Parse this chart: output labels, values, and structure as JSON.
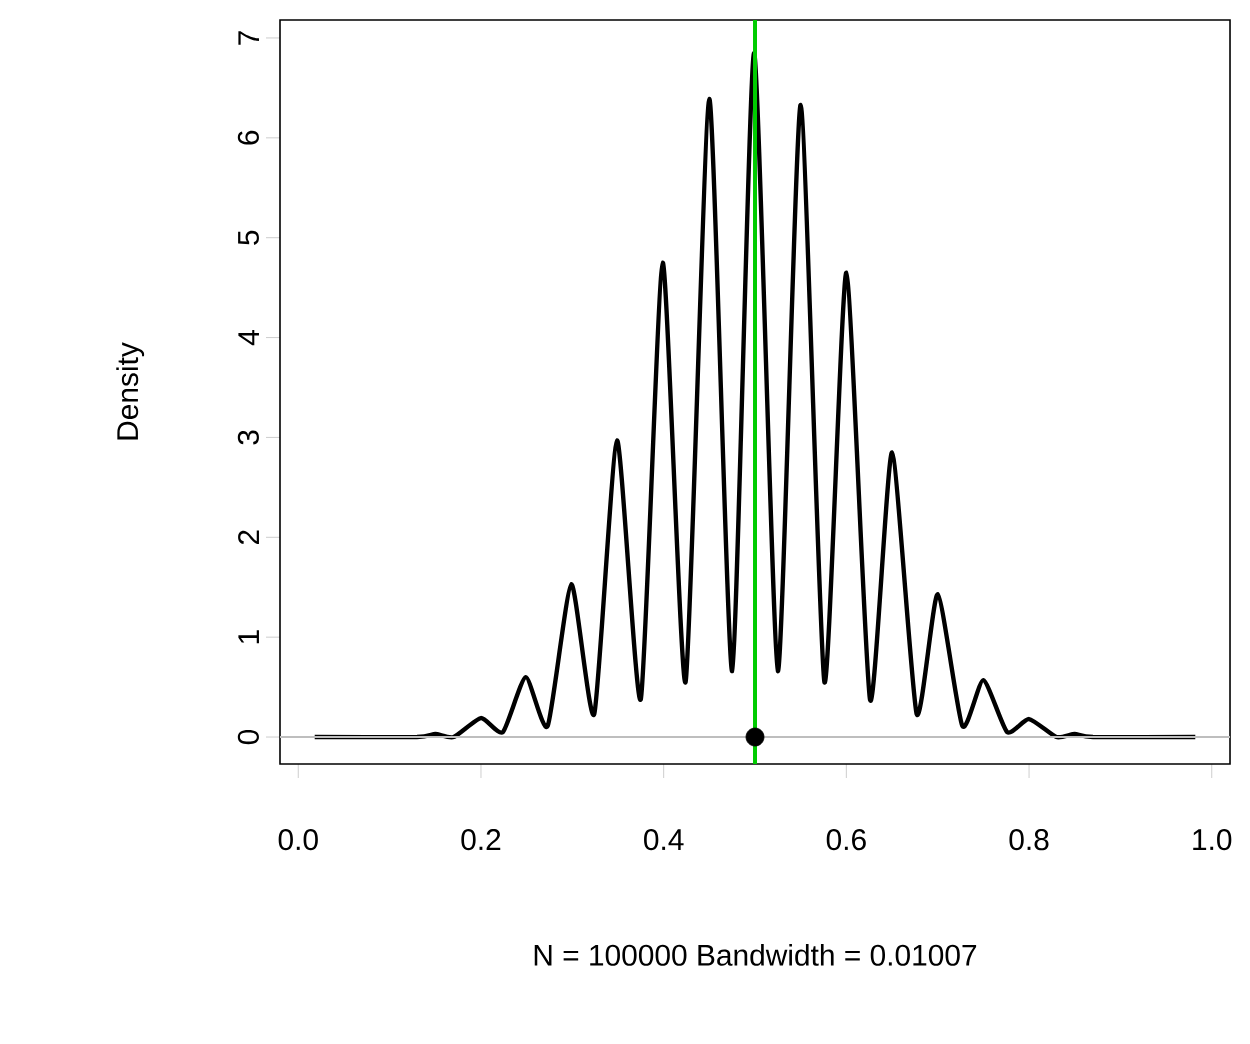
{
  "chart_data": {
    "type": "line",
    "xlabel": "N = 100000   Bandwidth = 0.01007",
    "ylabel": "Density",
    "xlim": [
      -0.02,
      1.02
    ],
    "ylim": [
      -0.27,
      7.18
    ],
    "xticks": [
      {
        "value": 0,
        "label": "0.0"
      },
      {
        "value": 0.2,
        "label": "0.2"
      },
      {
        "value": 0.4,
        "label": "0.4"
      },
      {
        "value": 0.6,
        "label": "0.6"
      },
      {
        "value": 0.8,
        "label": "0.8"
      },
      {
        "value": 1,
        "label": "1.0"
      }
    ],
    "yticks": [
      0,
      1,
      2,
      3,
      4,
      5,
      6,
      7
    ],
    "grid": false,
    "line_style": "solid",
    "series": [
      {
        "type": "line",
        "color": "#000000",
        "x": [
          0.018,
          0.13,
          0.15,
          0.17,
          0.2,
          0.224,
          0.249,
          0.273,
          0.299,
          0.324,
          0.349,
          0.375,
          0.399,
          0.424,
          0.45,
          0.475,
          0.499,
          0.525,
          0.55,
          0.576,
          0.6,
          0.626,
          0.65,
          0.677,
          0.7,
          0.727,
          0.75,
          0.776,
          0.8,
          0.83,
          0.85,
          0.87,
          0.982
        ],
        "values": [
          0,
          0,
          0.03,
          0,
          0.19,
          0.05,
          0.6,
          0.11,
          1.53,
          0.23,
          2.97,
          0.38,
          4.75,
          0.55,
          6.39,
          0.66,
          6.85,
          0.66,
          6.33,
          0.55,
          4.65,
          0.37,
          2.85,
          0.23,
          1.43,
          0.11,
          0.57,
          0.05,
          0.18,
          0,
          0.03,
          0,
          0
        ]
      },
      {
        "type": "scatter",
        "color": "#000000",
        "marker": "circle",
        "x": [
          0.5
        ],
        "values": [
          0
        ]
      }
    ],
    "ref_lines": [
      {
        "axis": "y",
        "value": 0,
        "color": "#bebebe"
      },
      {
        "axis": "x",
        "value": 0.5,
        "color": "#00cc00"
      }
    ]
  }
}
